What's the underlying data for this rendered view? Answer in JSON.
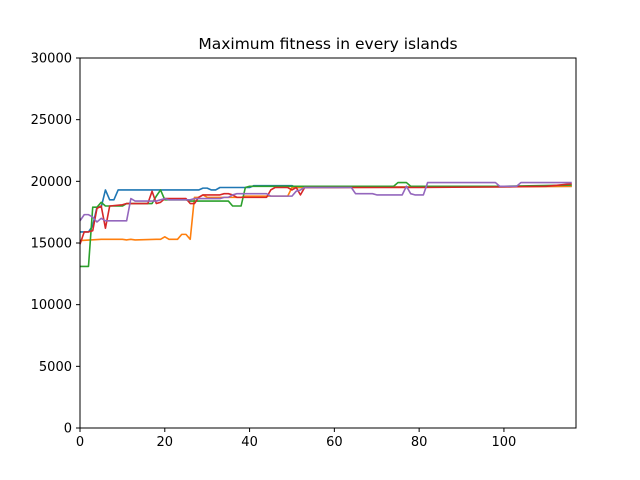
{
  "chart_data": {
    "type": "line",
    "title": "Maximum fitness in every islands",
    "xlabel": "",
    "ylabel": "",
    "xlim": [
      0,
      117
    ],
    "ylim": [
      0,
      30000
    ],
    "xticks": [
      0,
      20,
      40,
      60,
      80,
      100
    ],
    "yticks": [
      0,
      5000,
      10000,
      15000,
      20000,
      25000,
      30000
    ],
    "grid": false,
    "legend": "none",
    "series": [
      {
        "color": "#1f77b4",
        "points": [
          [
            0,
            15900
          ],
          [
            1,
            15900
          ],
          [
            2,
            15900
          ],
          [
            3,
            16400
          ],
          [
            4,
            17900
          ],
          [
            5,
            17900
          ],
          [
            6,
            19300
          ],
          [
            7,
            18500
          ],
          [
            8,
            18500
          ],
          [
            9,
            19300
          ],
          [
            10,
            19300
          ],
          [
            20,
            19300
          ],
          [
            28,
            19300
          ],
          [
            29,
            19450
          ],
          [
            30,
            19450
          ],
          [
            31,
            19300
          ],
          [
            32,
            19300
          ],
          [
            33,
            19500
          ],
          [
            40,
            19500
          ],
          [
            41,
            19650
          ],
          [
            50,
            19650
          ],
          [
            51,
            19500
          ],
          [
            60,
            19500
          ],
          [
            70,
            19550
          ],
          [
            80,
            19550
          ],
          [
            90,
            19550
          ],
          [
            100,
            19550
          ],
          [
            105,
            19600
          ],
          [
            110,
            19600
          ],
          [
            116,
            19600
          ]
        ]
      },
      {
        "color": "#ff7f0e",
        "points": [
          [
            0,
            15200
          ],
          [
            5,
            15300
          ],
          [
            10,
            15300
          ],
          [
            11,
            15250
          ],
          [
            12,
            15300
          ],
          [
            13,
            15250
          ],
          [
            18,
            15300
          ],
          [
            19,
            15300
          ],
          [
            20,
            15500
          ],
          [
            21,
            15300
          ],
          [
            23,
            15300
          ],
          [
            24,
            15700
          ],
          [
            25,
            15700
          ],
          [
            26,
            15300
          ],
          [
            27,
            18700
          ],
          [
            28,
            18700
          ],
          [
            29,
            18900
          ],
          [
            30,
            18700
          ],
          [
            38,
            18700
          ],
          [
            39,
            18800
          ],
          [
            49,
            18800
          ],
          [
            50,
            19500
          ],
          [
            60,
            19500
          ],
          [
            80,
            19550
          ],
          [
            100,
            19550
          ],
          [
            116,
            19600
          ]
        ]
      },
      {
        "color": "#2ca02c",
        "points": [
          [
            0,
            13100
          ],
          [
            1,
            13100
          ],
          [
            2,
            13100
          ],
          [
            3,
            17900
          ],
          [
            4,
            17900
          ],
          [
            5,
            18300
          ],
          [
            6,
            18000
          ],
          [
            10,
            18000
          ],
          [
            11,
            18200
          ],
          [
            17,
            18200
          ],
          [
            18,
            18800
          ],
          [
            19,
            19300
          ],
          [
            20,
            18500
          ],
          [
            25,
            18500
          ],
          [
            26,
            18400
          ],
          [
            35,
            18400
          ],
          [
            36,
            18000
          ],
          [
            38,
            18000
          ],
          [
            39,
            19500
          ],
          [
            40,
            19600
          ],
          [
            55,
            19600
          ],
          [
            74,
            19600
          ],
          [
            75,
            19900
          ],
          [
            77,
            19900
          ],
          [
            78,
            19600
          ],
          [
            100,
            19600
          ],
          [
            116,
            19700
          ]
        ]
      },
      {
        "color": "#d62728",
        "points": [
          [
            0,
            14900
          ],
          [
            1,
            15900
          ],
          [
            2,
            15900
          ],
          [
            3,
            16000
          ],
          [
            4,
            17800
          ],
          [
            5,
            18000
          ],
          [
            6,
            16200
          ],
          [
            7,
            18000
          ],
          [
            10,
            18100
          ],
          [
            11,
            18200
          ],
          [
            16,
            18200
          ],
          [
            17,
            19200
          ],
          [
            18,
            18200
          ],
          [
            19,
            18300
          ],
          [
            20,
            18600
          ],
          [
            25,
            18600
          ],
          [
            26,
            18200
          ],
          [
            27,
            18200
          ],
          [
            28,
            18700
          ],
          [
            29,
            18900
          ],
          [
            33,
            18900
          ],
          [
            34,
            19000
          ],
          [
            35,
            19000
          ],
          [
            36,
            18900
          ],
          [
            37,
            18700
          ],
          [
            38,
            18700
          ],
          [
            44,
            18700
          ],
          [
            45,
            19300
          ],
          [
            46,
            19500
          ],
          [
            49,
            19500
          ],
          [
            50,
            19300
          ],
          [
            51,
            19500
          ],
          [
            52,
            18900
          ],
          [
            53,
            19500
          ],
          [
            60,
            19500
          ],
          [
            80,
            19500
          ],
          [
            100,
            19550
          ],
          [
            110,
            19600
          ],
          [
            116,
            19800
          ]
        ]
      },
      {
        "color": "#9467bd",
        "points": [
          [
            0,
            16800
          ],
          [
            1,
            17300
          ],
          [
            2,
            17300
          ],
          [
            3,
            17100
          ],
          [
            4,
            16700
          ],
          [
            5,
            17000
          ],
          [
            6,
            16800
          ],
          [
            11,
            16800
          ],
          [
            12,
            18600
          ],
          [
            13,
            18400
          ],
          [
            18,
            18400
          ],
          [
            19,
            18500
          ],
          [
            20,
            18600
          ],
          [
            21,
            18500
          ],
          [
            26,
            18500
          ],
          [
            27,
            18600
          ],
          [
            33,
            18600
          ],
          [
            34,
            18700
          ],
          [
            35,
            18700
          ],
          [
            36,
            18900
          ],
          [
            37,
            19000
          ],
          [
            44,
            19000
          ],
          [
            45,
            18800
          ],
          [
            50,
            18800
          ],
          [
            51,
            19200
          ],
          [
            52,
            19300
          ],
          [
            53,
            19500
          ],
          [
            64,
            19500
          ],
          [
            65,
            19000
          ],
          [
            69,
            19000
          ],
          [
            70,
            18900
          ],
          [
            76,
            18900
          ],
          [
            77,
            19600
          ],
          [
            78,
            19000
          ],
          [
            79,
            18900
          ],
          [
            81,
            18900
          ],
          [
            82,
            19900
          ],
          [
            92,
            19900
          ],
          [
            98,
            19900
          ],
          [
            99,
            19600
          ],
          [
            103,
            19600
          ],
          [
            104,
            19900
          ],
          [
            116,
            19900
          ]
        ]
      }
    ]
  }
}
